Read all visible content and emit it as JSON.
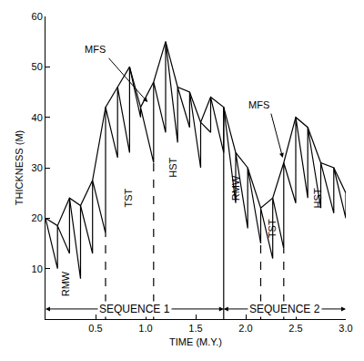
{
  "chart_data": {
    "type": "line",
    "x_label": "TIME (M.Y.)",
    "y_label": "THICKNESS (M)",
    "xlim": [
      0,
      3
    ],
    "ylim": [
      0,
      60
    ],
    "xticks": [
      0.5,
      {
        "value": 1,
        "label": "1.0"
      },
      1.5,
      {
        "value": 2,
        "label": "2.0"
      },
      2.5,
      {
        "value": 3,
        "label": "3.0"
      }
    ],
    "yticks": [
      10,
      20,
      30,
      40,
      50,
      60
    ],
    "grid": false,
    "color": "#000000",
    "series": [
      {
        "line_style": "solid",
        "x": [
          0,
          0.12,
          0.24,
          0.35,
          0.47,
          0.6,
          0.72,
          0.84,
          0.95,
          1.08,
          1.2,
          1.32,
          1.44,
          1.55,
          1.65,
          1.78,
          1.9,
          2.02,
          2.15,
          2.27,
          2.38,
          2.5,
          2.62,
          2.75,
          2.88,
          3.0
        ],
        "values": [
          20,
          18.5,
          24,
          22.5,
          27.5,
          42,
          46,
          50,
          42,
          47,
          55,
          46,
          45,
          39,
          44,
          42,
          33,
          30,
          22,
          24,
          31,
          40,
          38,
          31,
          30,
          25
        ]
      },
      {
        "line_style": "solid",
        "x": [
          0,
          0.12,
          0.12,
          0.24,
          0.24,
          0.35,
          0.35,
          0.47,
          0.47,
          0.6,
          0.6,
          0.72,
          0.72,
          0.84,
          0.84,
          0.95,
          0.95,
          1.08,
          1.08,
          1.2,
          1.2,
          1.32,
          1.32,
          1.44,
          1.44,
          1.55,
          1.55,
          1.65,
          1.65,
          1.78,
          1.78,
          1.9,
          1.9,
          2.02,
          2.02,
          2.15,
          2.15,
          2.27,
          2.27,
          2.38,
          2.38,
          2.5,
          2.5,
          2.62,
          2.62,
          2.75,
          2.75,
          2.88,
          2.88,
          3.0,
          3.0
        ],
        "values": [
          20,
          10,
          18.5,
          13,
          24,
          8,
          22.5,
          13,
          27.5,
          17,
          42,
          32,
          46,
          33,
          50,
          40,
          42,
          31,
          47,
          37,
          55,
          35,
          46,
          38,
          45,
          30,
          39,
          37,
          44,
          33,
          42,
          23,
          33,
          18,
          30,
          15,
          22,
          12,
          24,
          14,
          31,
          23,
          40,
          24,
          38,
          22,
          31,
          21,
          30,
          20,
          25
        ]
      }
    ],
    "boundaries": [
      {
        "x": 0.6,
        "top": 17,
        "line_style": "dashed"
      },
      {
        "x": 1.08,
        "top": 31,
        "line_style": "dashed"
      },
      {
        "x": 1.78,
        "top": 42,
        "line_style": "solid"
      },
      {
        "x": 2.15,
        "top": 15,
        "line_style": "dashed"
      },
      {
        "x": 2.38,
        "top": 14,
        "line_style": "dashed"
      }
    ],
    "annotations": [
      {
        "text": "RMW",
        "x": 0.2,
        "y": 7,
        "vertical": true
      },
      {
        "text": "TST",
        "x": 0.83,
        "y": 24,
        "vertical": true
      },
      {
        "text": "HST",
        "x": 1.27,
        "y": 30,
        "vertical": true
      },
      {
        "text": "RMW",
        "x": 1.9,
        "y": 26,
        "vertical": true
      },
      {
        "text": "TST",
        "x": 2.27,
        "y": 18,
        "vertical": true
      },
      {
        "text": "HST",
        "x": 2.72,
        "y": 24,
        "vertical": true
      },
      {
        "text": "MFS",
        "x": 0.62,
        "y": 52,
        "arrow_x": 1.02,
        "arrow_y": 43
      },
      {
        "text": "MFS",
        "x": 2.25,
        "y": 41,
        "arrow_x": 2.37,
        "arrow_y": 32
      }
    ],
    "sequences": [
      {
        "label": "SEQUENCE 1",
        "start": 0,
        "end": 1.78
      },
      {
        "label": "SEQUENCE 2",
        "start": 1.78,
        "end": 3.0
      }
    ],
    "sequence_y": 2
  }
}
